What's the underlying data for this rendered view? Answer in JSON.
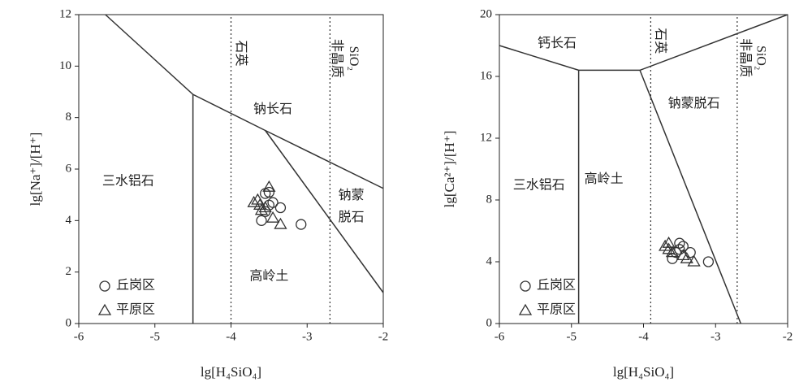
{
  "chart_data": [
    {
      "type": "scatter",
      "xlabel": "lg[H₄SiO₄]",
      "ylabel": "lg[Na⁺]/[H⁺]",
      "xlim": [
        -6,
        -2
      ],
      "xticks": [
        -6,
        -5,
        -4,
        -3,
        -2
      ],
      "ylim": [
        0,
        12
      ],
      "yticks": [
        0,
        2,
        4,
        6,
        8,
        10,
        12
      ],
      "series": [
        {
          "name": "丘岗区",
          "marker": "circle",
          "color": "#333",
          "x": [
            -3.55,
            -3.5,
            -3.45,
            -3.55,
            -3.6,
            -3.35,
            -3.08,
            -3.5
          ],
          "values": [
            5.05,
            5.1,
            4.7,
            4.35,
            4.0,
            4.5,
            3.85,
            4.6
          ]
        },
        {
          "name": "平原区",
          "marker": "triangle",
          "color": "#333",
          "x": [
            -3.7,
            -3.65,
            -3.5,
            -3.55,
            -3.45,
            -3.35,
            -3.6,
            -3.62
          ],
          "values": [
            4.7,
            4.8,
            5.3,
            4.5,
            4.1,
            3.85,
            4.4,
            4.6
          ]
        }
      ],
      "lines": [
        {
          "style": "solid",
          "x": [
            -5.65,
            -4.5,
            -3.55,
            -2
          ],
          "y": [
            12,
            8.9,
            7.5,
            5.25
          ]
        },
        {
          "style": "solid",
          "x": [
            -4.5,
            -4.5
          ],
          "y": [
            8.9,
            0
          ]
        },
        {
          "style": "solid",
          "x": [
            -3.55,
            -2
          ],
          "y": [
            7.5,
            1.2
          ]
        },
        {
          "style": "dotted",
          "x": [
            -4,
            -4
          ],
          "y": [
            0,
            12
          ]
        },
        {
          "style": "dotted",
          "x": [
            -2.7,
            -2.7
          ],
          "y": [
            0,
            12
          ]
        }
      ],
      "annotations": [
        "三水铝石",
        "钠长石",
        "高岭土",
        "钠蒙",
        "脱石",
        "石英",
        "非晶质",
        "SiO₂"
      ]
    },
    {
      "type": "scatter",
      "xlabel": "lg[H₄SiO₄]",
      "ylabel": "lg[Ca²⁺]/[H⁺]",
      "xlim": [
        -6,
        -2
      ],
      "xticks": [
        -6,
        -5,
        -4,
        -3,
        -2
      ],
      "ylim": [
        0,
        20
      ],
      "yticks": [
        0,
        4,
        8,
        12,
        16,
        20
      ],
      "series": [
        {
          "name": "丘岗区",
          "marker": "circle",
          "color": "#333",
          "x": [
            -3.5,
            -3.45,
            -3.55,
            -3.6,
            -3.35,
            -3.1,
            -3.5
          ],
          "values": [
            5.2,
            5.0,
            4.6,
            4.2,
            4.6,
            4.0,
            4.8
          ]
        },
        {
          "name": "平原区",
          "marker": "triangle",
          "color": "#333",
          "x": [
            -3.7,
            -3.65,
            -3.6,
            -3.45,
            -3.4,
            -3.3,
            -3.65
          ],
          "values": [
            5.0,
            5.2,
            4.6,
            4.4,
            4.2,
            4.0,
            4.8
          ]
        }
      ],
      "lines": [
        {
          "style": "solid",
          "x": [
            -6,
            -4.9,
            -4.05,
            -2
          ],
          "y": [
            18,
            16.4,
            16.4,
            20
          ]
        },
        {
          "style": "solid",
          "x": [
            -4.9,
            -4.9
          ],
          "y": [
            16.4,
            0
          ]
        },
        {
          "style": "solid",
          "x": [
            -4.05,
            -2.65
          ],
          "y": [
            16.4,
            0
          ]
        },
        {
          "style": "dotted",
          "x": [
            -3.9,
            -3.9
          ],
          "y": [
            0,
            20
          ]
        },
        {
          "style": "dotted",
          "x": [
            -2.7,
            -2.7
          ],
          "y": [
            0,
            20
          ]
        }
      ],
      "annotations": [
        "钙长石",
        "石英",
        "非晶质",
        "SiO₂",
        "钠蒙脱石",
        "三水铝石",
        "高岭土"
      ]
    }
  ]
}
